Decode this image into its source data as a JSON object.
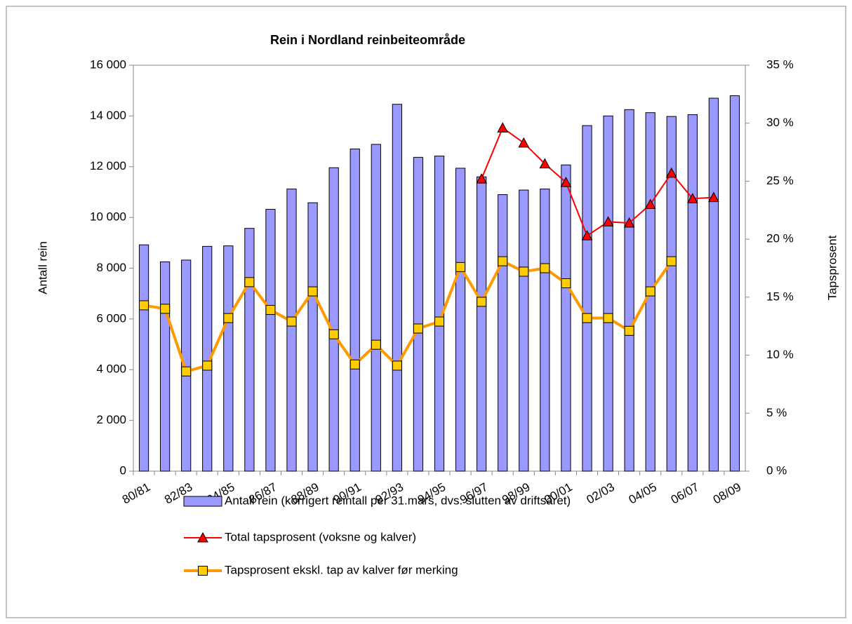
{
  "chart_data": {
    "type": "bar",
    "title": "Rein i Nordland reinbeiteområde",
    "y_label": "Antall rein",
    "y2_label": "Tapsprosent",
    "categories": [
      "80/81",
      null,
      "82/83",
      null,
      "84/85",
      null,
      "86/87",
      null,
      "88/89",
      null,
      "90/91",
      null,
      "92/93",
      null,
      "94/95",
      null,
      "96/97",
      null,
      "98/99",
      null,
      "00/01",
      null,
      "02/03",
      null,
      "04/05",
      null,
      "06/07",
      null,
      "08/09"
    ],
    "series": [
      {
        "name": "Antall rein (korrigert reintall per 31.mars, dvs. slutten av driftsåret)",
        "type": "bar",
        "axis": "y",
        "color": "#9999ff",
        "values": [
          8920,
          8250,
          8320,
          8860,
          8880,
          9570,
          10320,
          11120,
          10580,
          11960,
          12700,
          12880,
          14460,
          12370,
          12420,
          11940,
          11600,
          10900,
          11080,
          11120,
          12070,
          13620,
          14000,
          14250,
          14130,
          13980,
          14050,
          14700,
          14800
        ]
      },
      {
        "name": "Total tapsprosent (voksne og kalver)",
        "type": "line",
        "marker": "triangle",
        "axis": "y2",
        "color": "#ff0000",
        "values": [
          null,
          null,
          null,
          null,
          null,
          null,
          null,
          null,
          null,
          null,
          null,
          null,
          null,
          null,
          null,
          null,
          25.2,
          29.6,
          28.3,
          26.5,
          24.9,
          20.3,
          21.5,
          21.4,
          23.0,
          25.7,
          23.5,
          23.6,
          null
        ]
      },
      {
        "name": "Tapsprosent ekskl. tap av kalver før merking",
        "type": "line",
        "marker": "square",
        "axis": "y2",
        "color": "#ff9900",
        "values": [
          14.3,
          14.0,
          8.6,
          9.1,
          13.2,
          16.3,
          13.9,
          12.9,
          15.5,
          11.8,
          9.2,
          10.9,
          9.1,
          12.3,
          12.9,
          17.6,
          14.6,
          18.1,
          17.2,
          17.5,
          16.2,
          13.2,
          13.2,
          12.1,
          15.5,
          18.1,
          null,
          null,
          null
        ]
      }
    ],
    "ylim": [
      0,
      16000
    ],
    "yticks": [
      0,
      {
        "value": 2000,
        "label": "2 000"
      },
      {
        "value": 4000,
        "label": "4 000"
      },
      {
        "value": 6000,
        "label": "6 000"
      },
      {
        "value": 8000,
        "label": "8 000"
      },
      {
        "value": 10000,
        "label": "10 000"
      },
      {
        "value": 12000,
        "label": "12 000"
      },
      {
        "value": 14000,
        "label": "14 000"
      },
      {
        "value": 16000,
        "label": "16 000"
      }
    ],
    "y2lim": [
      0,
      35
    ],
    "y2ticks": [
      {
        "value": 0,
        "label": "0 %"
      },
      {
        "value": 5,
        "label": "5 %"
      },
      {
        "value": 10,
        "label": "10 %"
      },
      {
        "value": 15,
        "label": "15 %"
      },
      {
        "value": 20,
        "label": "20 %"
      },
      {
        "value": 25,
        "label": "25 %"
      },
      {
        "value": 30,
        "label": "30 %"
      },
      {
        "value": 35,
        "label": "35 %"
      }
    ],
    "legend": "bottom"
  }
}
